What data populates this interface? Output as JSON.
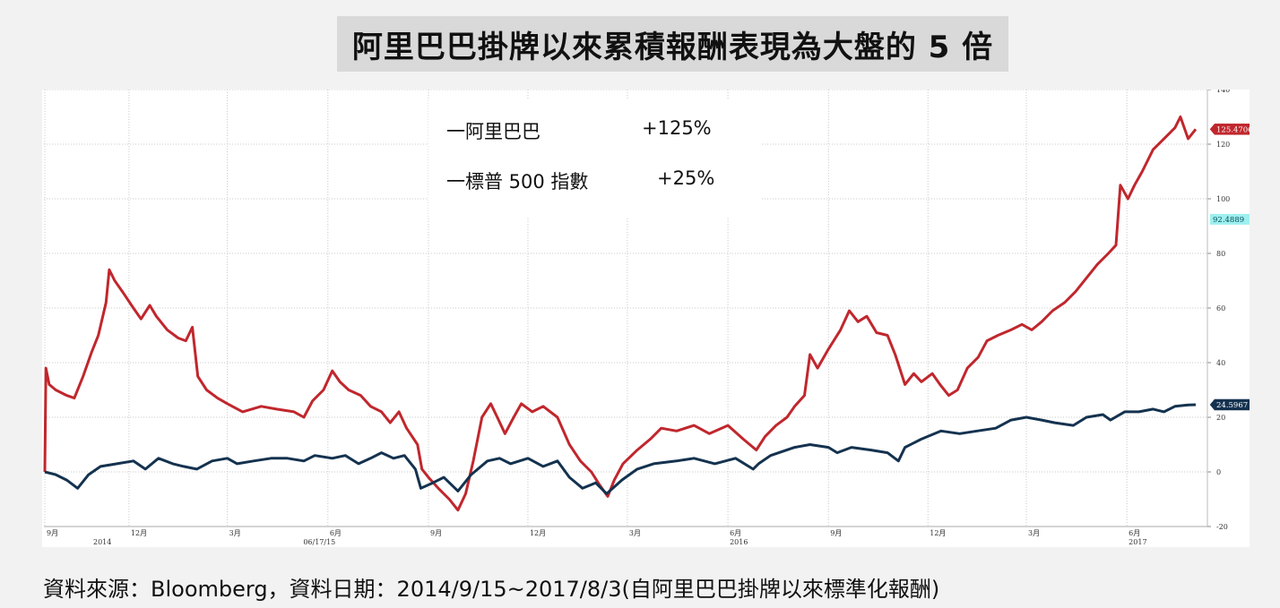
{
  "title": "阿里巴巴掛牌以來累積報酬表現為大盤的 5 倍",
  "source": "資料來源：Bloomberg，資料日期：2014/9/15~2017/8/3(自阿里巴巴掛牌以來標準化報酬)",
  "legend": [
    {
      "label": "一阿里巴巴",
      "pct": "+125%"
    },
    {
      "label": "一標普 500 指數",
      "pct": "+25%"
    }
  ],
  "colors": {
    "alibaba": "#c0272d",
    "sp500": "#14324f",
    "grid": "#c8c8c8",
    "highlight_badge": "#9ef0ef"
  },
  "chart_data": {
    "type": "line",
    "title": "阿里巴巴掛牌以來累積報酬表現為大盤的 5 倍",
    "xlabel": "",
    "ylabel": "",
    "ylim": [
      -20,
      140
    ],
    "yticks": [
      "140",
      "120",
      "100",
      "80",
      "60",
      "40",
      "20",
      "0",
      "-20"
    ],
    "xticks": [
      {
        "label": "9月",
        "year": "2014"
      },
      {
        "label": "12月",
        "year": ""
      },
      {
        "label": "3月",
        "year": ""
      },
      {
        "label": "6月",
        "year": ""
      },
      {
        "label": "9月",
        "year": ""
      },
      {
        "label": "12月",
        "year": ""
      },
      {
        "label": "3月",
        "year": ""
      },
      {
        "label": "6月",
        "year": "2016"
      },
      {
        "label": "9月",
        "year": ""
      },
      {
        "label": "12月",
        "year": ""
      },
      {
        "label": "3月",
        "year": ""
      },
      {
        "label": "6月",
        "year": "2017"
      }
    ],
    "highlight_date": "06/17/15",
    "highlight_value": "92.4889",
    "end_labels": {
      "alibaba": "125.4706",
      "sp500": "24.5967"
    },
    "grid": true,
    "legend_position": "top-center",
    "series": [
      {
        "name": "一阿里巴巴",
        "color": "#c0272d",
        "points": [
          [
            "2014-09-15",
            0
          ],
          [
            "2014-09-16",
            38
          ],
          [
            "2014-09-19",
            32
          ],
          [
            "2014-09-25",
            30
          ],
          [
            "2014-10-05",
            28
          ],
          [
            "2014-10-12",
            27
          ],
          [
            "2014-10-20",
            35
          ],
          [
            "2014-10-28",
            44
          ],
          [
            "2014-11-03",
            50
          ],
          [
            "2014-11-10",
            62
          ],
          [
            "2014-11-13",
            74
          ],
          [
            "2014-11-18",
            70
          ],
          [
            "2014-11-25",
            66
          ],
          [
            "2014-12-05",
            60
          ],
          [
            "2014-12-12",
            56
          ],
          [
            "2014-12-20",
            61
          ],
          [
            "2014-12-26",
            57
          ],
          [
            "2015-01-05",
            52
          ],
          [
            "2015-01-15",
            49
          ],
          [
            "2015-01-22",
            48
          ],
          [
            "2015-01-28",
            53
          ],
          [
            "2015-02-02",
            35
          ],
          [
            "2015-02-10",
            30
          ],
          [
            "2015-02-20",
            27
          ],
          [
            "2015-03-01",
            25
          ],
          [
            "2015-03-15",
            22
          ],
          [
            "2015-04-01",
            24
          ],
          [
            "2015-04-15",
            23
          ],
          [
            "2015-05-01",
            22
          ],
          [
            "2015-05-10",
            20
          ],
          [
            "2015-05-18",
            26
          ],
          [
            "2015-05-28",
            30
          ],
          [
            "2015-06-05",
            37
          ],
          [
            "2015-06-12",
            33
          ],
          [
            "2015-06-20",
            30
          ],
          [
            "2015-07-01",
            28
          ],
          [
            "2015-07-10",
            24
          ],
          [
            "2015-07-20",
            22
          ],
          [
            "2015-07-28",
            18
          ],
          [
            "2015-08-05",
            22
          ],
          [
            "2015-08-12",
            16
          ],
          [
            "2015-08-22",
            10
          ],
          [
            "2015-08-26",
            1
          ],
          [
            "2015-09-01",
            -2
          ],
          [
            "2015-09-10",
            -6
          ],
          [
            "2015-09-20",
            -10
          ],
          [
            "2015-09-28",
            -14
          ],
          [
            "2015-10-05",
            -8
          ],
          [
            "2015-10-12",
            4
          ],
          [
            "2015-10-20",
            20
          ],
          [
            "2015-10-28",
            25
          ],
          [
            "2015-11-03",
            20
          ],
          [
            "2015-11-10",
            14
          ],
          [
            "2015-11-18",
            20
          ],
          [
            "2015-11-25",
            25
          ],
          [
            "2015-12-05",
            22
          ],
          [
            "2015-12-15",
            24
          ],
          [
            "2015-12-28",
            20
          ],
          [
            "2016-01-08",
            10
          ],
          [
            "2016-01-18",
            4
          ],
          [
            "2016-01-28",
            0
          ],
          [
            "2016-02-05",
            -5
          ],
          [
            "2016-02-12",
            -9
          ],
          [
            "2016-02-18",
            -3
          ],
          [
            "2016-02-26",
            3
          ],
          [
            "2016-03-10",
            8
          ],
          [
            "2016-03-22",
            12
          ],
          [
            "2016-04-01",
            16
          ],
          [
            "2016-04-15",
            15
          ],
          [
            "2016-05-01",
            17
          ],
          [
            "2016-05-15",
            14
          ],
          [
            "2016-06-01",
            17
          ],
          [
            "2016-06-15",
            12
          ],
          [
            "2016-06-27",
            8
          ],
          [
            "2016-07-05",
            13
          ],
          [
            "2016-07-15",
            17
          ],
          [
            "2016-07-25",
            20
          ],
          [
            "2016-08-01",
            24
          ],
          [
            "2016-08-10",
            28
          ],
          [
            "2016-08-15",
            43
          ],
          [
            "2016-08-22",
            38
          ],
          [
            "2016-09-01",
            45
          ],
          [
            "2016-09-12",
            52
          ],
          [
            "2016-09-20",
            59
          ],
          [
            "2016-09-28",
            55
          ],
          [
            "2016-10-06",
            57
          ],
          [
            "2016-10-15",
            51
          ],
          [
            "2016-10-25",
            50
          ],
          [
            "2016-11-01",
            43
          ],
          [
            "2016-11-10",
            32
          ],
          [
            "2016-11-18",
            36
          ],
          [
            "2016-11-25",
            33
          ],
          [
            "2016-12-05",
            36
          ],
          [
            "2016-12-12",
            32
          ],
          [
            "2016-12-20",
            28
          ],
          [
            "2016-12-28",
            30
          ],
          [
            "2017-01-06",
            38
          ],
          [
            "2017-01-16",
            42
          ],
          [
            "2017-01-24",
            48
          ],
          [
            "2017-02-03",
            50
          ],
          [
            "2017-02-15",
            52
          ],
          [
            "2017-02-25",
            54
          ],
          [
            "2017-03-06",
            52
          ],
          [
            "2017-03-15",
            55
          ],
          [
            "2017-03-25",
            59
          ],
          [
            "2017-04-05",
            62
          ],
          [
            "2017-04-15",
            66
          ],
          [
            "2017-04-25",
            71
          ],
          [
            "2017-05-05",
            76
          ],
          [
            "2017-05-15",
            80
          ],
          [
            "2017-05-22",
            83
          ],
          [
            "2017-05-26",
            105
          ],
          [
            "2017-06-02",
            100
          ],
          [
            "2017-06-08",
            105
          ],
          [
            "2017-06-15",
            110
          ],
          [
            "2017-06-25",
            118
          ],
          [
            "2017-07-05",
            122
          ],
          [
            "2017-07-15",
            126
          ],
          [
            "2017-07-20",
            130
          ],
          [
            "2017-07-27",
            122
          ],
          [
            "2017-08-03",
            125.47
          ]
        ]
      },
      {
        "name": "一標普 500 指數",
        "color": "#14324f",
        "points": [
          [
            "2014-09-15",
            0
          ],
          [
            "2014-09-25",
            -1
          ],
          [
            "2014-10-05",
            -3
          ],
          [
            "2014-10-15",
            -6
          ],
          [
            "2014-10-25",
            -1
          ],
          [
            "2014-11-05",
            2
          ],
          [
            "2014-11-20",
            3
          ],
          [
            "2014-12-05",
            4
          ],
          [
            "2014-12-16",
            1
          ],
          [
            "2014-12-28",
            5
          ],
          [
            "2015-01-10",
            3
          ],
          [
            "2015-01-20",
            2
          ],
          [
            "2015-02-01",
            1
          ],
          [
            "2015-02-15",
            4
          ],
          [
            "2015-03-01",
            5
          ],
          [
            "2015-03-10",
            3
          ],
          [
            "2015-03-25",
            4
          ],
          [
            "2015-04-10",
            5
          ],
          [
            "2015-04-25",
            5
          ],
          [
            "2015-05-10",
            4
          ],
          [
            "2015-05-20",
            6
          ],
          [
            "2015-06-05",
            5
          ],
          [
            "2015-06-17",
            6
          ],
          [
            "2015-06-29",
            3
          ],
          [
            "2015-07-10",
            5
          ],
          [
            "2015-07-20",
            7
          ],
          [
            "2015-07-31",
            5
          ],
          [
            "2015-08-10",
            6
          ],
          [
            "2015-08-20",
            1
          ],
          [
            "2015-08-25",
            -6
          ],
          [
            "2015-09-05",
            -4
          ],
          [
            "2015-09-15",
            -2
          ],
          [
            "2015-09-28",
            -7
          ],
          [
            "2015-10-10",
            -1
          ],
          [
            "2015-10-25",
            4
          ],
          [
            "2015-11-05",
            5
          ],
          [
            "2015-11-15",
            3
          ],
          [
            "2015-12-01",
            5
          ],
          [
            "2015-12-15",
            2
          ],
          [
            "2015-12-28",
            4
          ],
          [
            "2016-01-08",
            -2
          ],
          [
            "2016-01-20",
            -6
          ],
          [
            "2016-02-01",
            -4
          ],
          [
            "2016-02-11",
            -8
          ],
          [
            "2016-02-25",
            -3
          ],
          [
            "2016-03-10",
            1
          ],
          [
            "2016-03-25",
            3
          ],
          [
            "2016-04-15",
            4
          ],
          [
            "2016-05-01",
            5
          ],
          [
            "2016-05-20",
            3
          ],
          [
            "2016-06-08",
            5
          ],
          [
            "2016-06-24",
            1
          ],
          [
            "2016-06-29",
            3
          ],
          [
            "2016-07-10",
            6
          ],
          [
            "2016-08-01",
            9
          ],
          [
            "2016-08-15",
            10
          ],
          [
            "2016-09-01",
            9
          ],
          [
            "2016-09-09",
            7
          ],
          [
            "2016-09-22",
            9
          ],
          [
            "2016-10-10",
            8
          ],
          [
            "2016-10-25",
            7
          ],
          [
            "2016-11-04",
            4
          ],
          [
            "2016-11-10",
            9
          ],
          [
            "2016-11-25",
            12
          ],
          [
            "2016-12-13",
            15
          ],
          [
            "2016-12-30",
            14
          ],
          [
            "2017-01-15",
            15
          ],
          [
            "2017-02-01",
            16
          ],
          [
            "2017-02-15",
            19
          ],
          [
            "2017-03-01",
            20
          ],
          [
            "2017-03-15",
            19
          ],
          [
            "2017-03-27",
            18
          ],
          [
            "2017-04-13",
            17
          ],
          [
            "2017-04-25",
            20
          ],
          [
            "2017-05-10",
            21
          ],
          [
            "2017-05-17",
            19
          ],
          [
            "2017-05-30",
            22
          ],
          [
            "2017-06-12",
            22
          ],
          [
            "2017-06-25",
            23
          ],
          [
            "2017-07-05",
            22
          ],
          [
            "2017-07-15",
            24
          ],
          [
            "2017-07-27",
            24.5
          ],
          [
            "2017-08-03",
            24.6
          ]
        ]
      }
    ]
  }
}
